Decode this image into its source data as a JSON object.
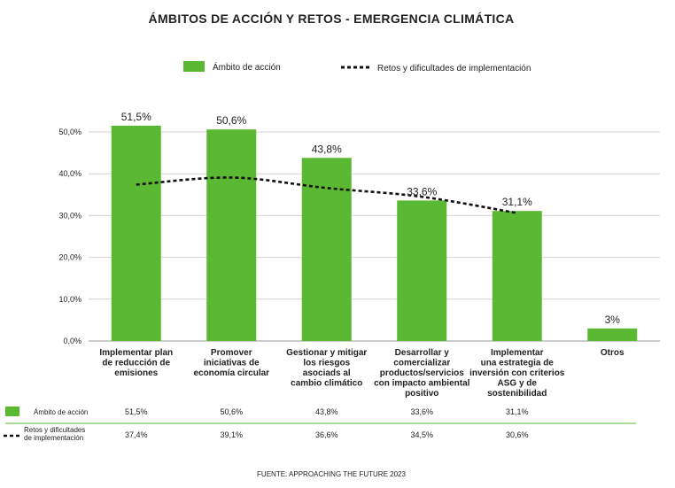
{
  "chart_data": {
    "type": "bar",
    "title": "ÁMBITOS DE ACCIÓN Y RETOS - EMERGENCIA CLIMÁTICA",
    "source": "FUENTE: APPROACHING THE FUTURE 2023",
    "categories": [
      [
        "Implementar plan",
        "de reducción de",
        "emisiones"
      ],
      [
        "Promover",
        "iniciativas de",
        "economía circular"
      ],
      [
        "Gestionar y mitigar",
        "los riesgos",
        "asociads al",
        "cambio climático"
      ],
      [
        "Desarrollar y",
        "comercializar",
        "productos/servicios",
        "con impacto ambiental",
        "positivo"
      ],
      [
        "Implementar",
        "una estrategia de",
        "inversión con criterios",
        "ASG y de",
        "sostenibilidad"
      ],
      [
        "Otros"
      ]
    ],
    "yticks": [
      "0,0%",
      "10,0%",
      "20,0%",
      "30,0%",
      "40,0%",
      "50,0%"
    ],
    "ylim": [
      0,
      55
    ],
    "bar_color": "#5bb832",
    "line_color": "#111111",
    "series": [
      {
        "name": "Ámbito de acción",
        "type": "bar",
        "values": [
          51.5,
          50.6,
          43.8,
          33.6,
          31.1,
          3
        ],
        "labels": [
          "51,5%",
          "50,6%",
          "43,8%",
          "33,6%",
          "31,1%",
          "3%"
        ]
      },
      {
        "name": "Retos y dificultades de implementación",
        "type": "line",
        "values": [
          37.4,
          39.1,
          36.6,
          34.5,
          30.6,
          null
        ]
      }
    ],
    "table": {
      "bar_row_label": "Ámbito de acción",
      "bar_row_values": [
        "51,5%",
        "50,6%",
        "43,8%",
        "33,6%",
        "31,1%"
      ],
      "line_row_label": [
        "Retos y dificultades",
        "de implementación"
      ],
      "line_row_values": [
        "37,4%",
        "39,1%",
        "36,6%",
        "34,5%",
        "30,6%"
      ]
    }
  }
}
